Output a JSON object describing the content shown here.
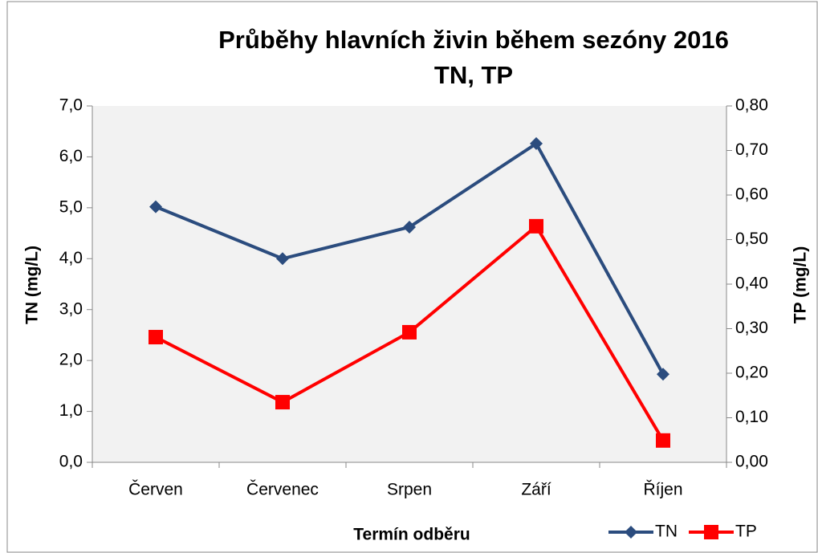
{
  "chart_data": {
    "type": "line",
    "title": "Průběhy hlavních živin během sezóny 2016",
    "subtitle": "TN, TP",
    "x_label": "Termín odběru",
    "y_label": "TN (mg/L)",
    "y2_label": "TP (mg/L)",
    "categories": [
      "Červen",
      "Červenec",
      "Srpen",
      "Září",
      "Říjen"
    ],
    "series": [
      {
        "name": "TN",
        "color": "#2b4c7e",
        "marker": "diamond",
        "values": [
          5.02,
          4.0,
          4.62,
          6.26,
          1.73
        ]
      },
      {
        "name": "TP",
        "color": "#ff0000",
        "marker": "square",
        "axis": "y2",
        "values": [
          0.281,
          0.135,
          0.292,
          0.53,
          0.049
        ]
      }
    ],
    "ylim": [
      0,
      7
    ],
    "yticks": [
      {
        "value": 0,
        "label": "0,0"
      },
      {
        "value": 1,
        "label": "1,0"
      },
      {
        "value": 2,
        "label": "2,0"
      },
      {
        "value": 3,
        "label": "3,0"
      },
      {
        "value": 4,
        "label": "4,0"
      },
      {
        "value": 5,
        "label": "5,0"
      },
      {
        "value": 6,
        "label": "6,0"
      },
      {
        "value": 7,
        "label": "7,0"
      }
    ],
    "y2lim": [
      0,
      0.8
    ],
    "y2ticks": [
      {
        "value": 0,
        "label": "0,00"
      },
      {
        "value": 0.1,
        "label": "0,10"
      },
      {
        "value": 0.2,
        "label": "0,20"
      },
      {
        "value": 0.3,
        "label": "0,30"
      },
      {
        "value": 0.4,
        "label": "0,40"
      },
      {
        "value": 0.5,
        "label": "0,50"
      },
      {
        "value": 0.6,
        "label": "0,60"
      },
      {
        "value": 0.7,
        "label": "0,70"
      },
      {
        "value": 0.8,
        "label": "0,80"
      }
    ],
    "grid": false,
    "legend": "bottom-right"
  }
}
